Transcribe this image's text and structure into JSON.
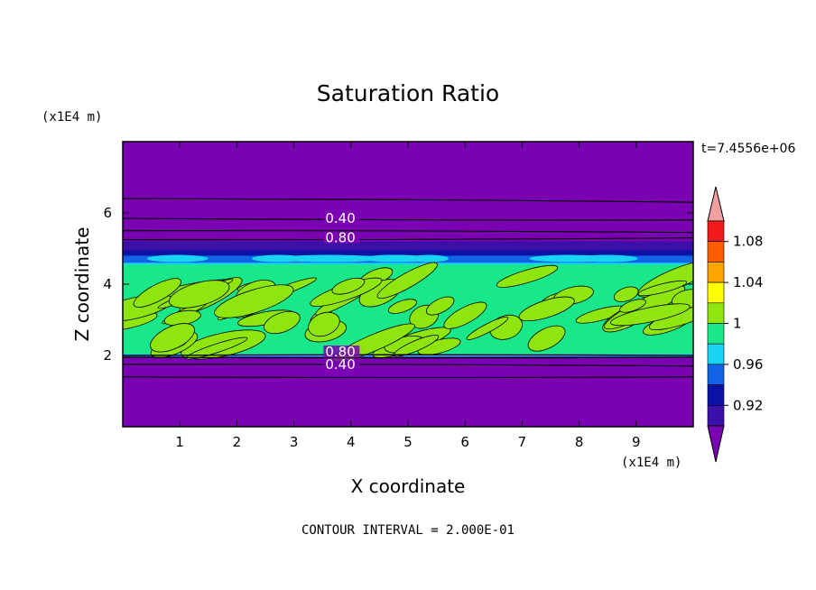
{
  "chart_data": {
    "type": "heatmap",
    "title": "Saturation Ratio",
    "xlabel": "X coordinate",
    "ylabel": "Z coordinate",
    "x_units": "(x1E4 m)",
    "y_units": "(x1E4 m)",
    "xlim": [
      0,
      10
    ],
    "ylim": [
      0,
      8
    ],
    "x_ticks": [
      "1",
      "2",
      "3",
      "4",
      "5",
      "6",
      "7",
      "8",
      "9"
    ],
    "y_ticks": [
      "2",
      "4",
      "6"
    ],
    "time_label": "t=7.4556e+06",
    "footer": "CONTOUR INTERVAL = 2.000E-01",
    "contour_labels": [
      "0.40",
      "0.80",
      "0.80",
      "0.40"
    ],
    "colorbar": {
      "labels": [
        "0.92",
        "0.96",
        "1",
        "1.04",
        "1.08"
      ],
      "colors": [
        "#7b02b3",
        "#3a10a8",
        "#0d12a6",
        "#1263e6",
        "#19d3f2",
        "#19e88a",
        "#8ee60e",
        "#ffff00",
        "#ffa500",
        "#ff5e00",
        "#f21a1a",
        "#f0a0a0"
      ]
    },
    "grid": false,
    "legend_placement": "right"
  }
}
